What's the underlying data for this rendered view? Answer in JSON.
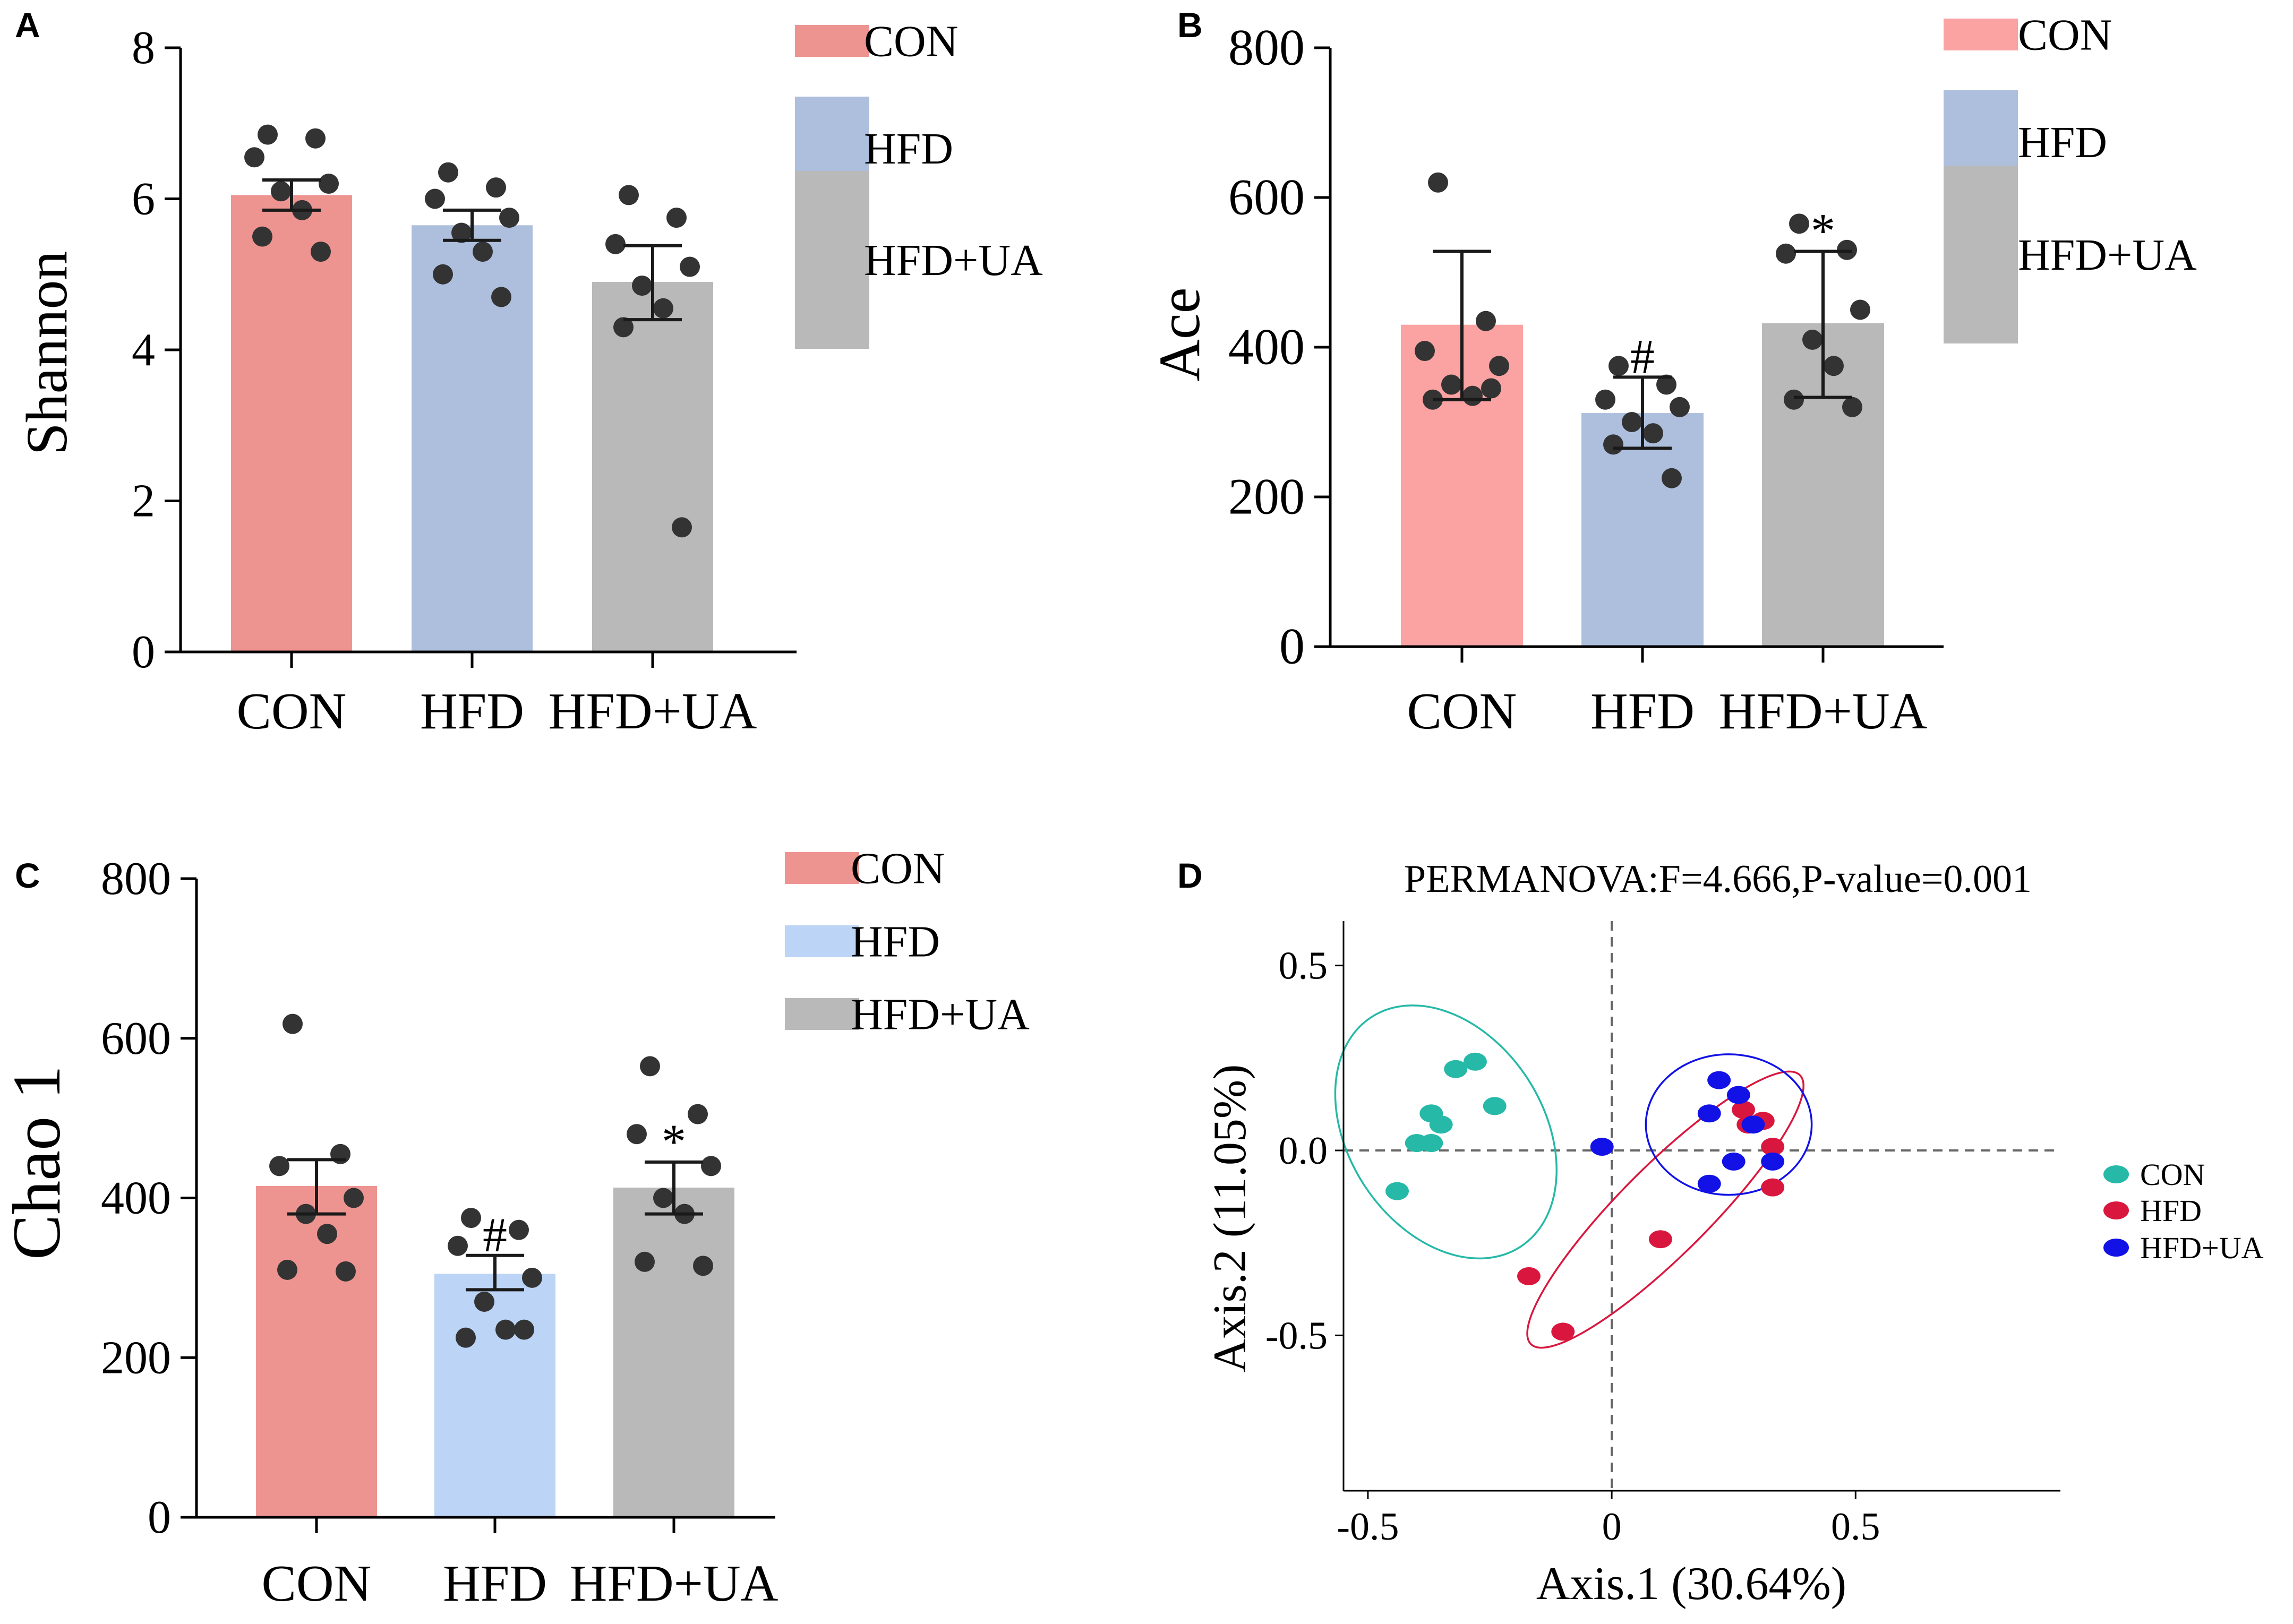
{
  "chart_data": [
    {
      "panel": "A",
      "type": "bar",
      "ylabel": "Shannon",
      "categories": [
        "CON",
        "HFD",
        "HFD+UA"
      ],
      "ylim": [
        0,
        8
      ],
      "yticks": [
        "0",
        "2",
        "4",
        "6",
        "8"
      ],
      "means": [
        6.05,
        5.65,
        4.9
      ],
      "error_low": [
        5.85,
        5.45,
        4.4
      ],
      "error_high": [
        6.25,
        5.85,
        5.38
      ],
      "points": [
        [
          6.85,
          6.8,
          6.55,
          6.2,
          6.1,
          5.85,
          5.5,
          5.3
        ],
        [
          6.35,
          6.15,
          6.0,
          5.75,
          5.55,
          5.3,
          5.0,
          4.7
        ],
        [
          6.05,
          5.75,
          5.4,
          5.1,
          4.85,
          4.55,
          4.3,
          1.65
        ]
      ],
      "annotations": [
        "",
        "",
        ""
      ],
      "bar_colors": [
        "#ee9490",
        "#aebfdd",
        "#b9b9b9"
      ],
      "legend": [
        "CON",
        "HFD",
        "HFD+UA"
      ]
    },
    {
      "panel": "B",
      "type": "bar",
      "ylabel": "Ace",
      "categories": [
        "CON",
        "HFD",
        "HFD+UA"
      ],
      "ylim": [
        0,
        800
      ],
      "yticks": [
        "0",
        "200",
        "400",
        "600",
        "800"
      ],
      "means": [
        430,
        312,
        432
      ],
      "error_low": [
        330,
        265,
        333
      ],
      "error_high": [
        528,
        360,
        528
      ],
      "points": [
        [
          620,
          435,
          395,
          375,
          350,
          335,
          330,
          345
        ],
        [
          375,
          350,
          330,
          320,
          300,
          285,
          270,
          225
        ],
        [
          565,
          530,
          525,
          450,
          410,
          375,
          330,
          320
        ]
      ],
      "annotations": [
        "",
        "#",
        "*"
      ],
      "bar_colors": [
        "#fba2a2",
        "#aebfdd",
        "#b9b9b9"
      ],
      "legend": [
        "CON",
        "HFD",
        "HFD+UA"
      ]
    },
    {
      "panel": "C",
      "type": "bar",
      "ylabel": "Chao 1",
      "categories": [
        "CON",
        "HFD",
        "HFD+UA"
      ],
      "ylim": [
        0,
        800
      ],
      "yticks": [
        "0",
        "200",
        "400",
        "600",
        "800"
      ],
      "means": [
        415,
        305,
        413
      ],
      "error_low": [
        380,
        285,
        380
      ],
      "error_high": [
        448,
        328,
        445
      ],
      "points": [
        [
          618,
          455,
          440,
          400,
          380,
          355,
          310,
          308
        ],
        [
          375,
          360,
          340,
          300,
          270,
          235,
          225,
          235
        ],
        [
          565,
          505,
          480,
          440,
          400,
          380,
          320,
          315
        ]
      ],
      "annotations": [
        "",
        "#",
        "*"
      ],
      "bar_colors": [
        "#ee9490",
        "#bcd4f5",
        "#b9b9b9"
      ],
      "legend": [
        "CON",
        "HFD",
        "HFD+UA"
      ]
    },
    {
      "panel": "D",
      "type": "scatter",
      "title": "PERMANOVA:F=4.666,P-value=0.001",
      "xlabel": "Axis.1 (30.64%)",
      "ylabel": "Axis.2 (11.05%)",
      "xlim": [
        -0.55,
        0.92
      ],
      "ylim": [
        -0.92,
        0.62
      ],
      "xticks": [
        "-0.5",
        "0",
        "0.5"
      ],
      "yticks": [
        "0.5",
        "0.0",
        "-0.5"
      ],
      "legend": [
        "CON",
        "HFD",
        "HFD+UA"
      ],
      "colors": {
        "CON": "#26b9a7",
        "HFD": "#d9173e",
        "HFD+UA": "#1212e6"
      },
      "series": [
        {
          "name": "CON",
          "x": [
            -0.28,
            -0.32,
            -0.24,
            -0.37,
            -0.35,
            -0.37,
            -0.4,
            -0.44
          ],
          "y": [
            0.24,
            0.22,
            0.12,
            0.1,
            0.07,
            0.02,
            0.02,
            -0.11
          ]
        },
        {
          "name": "HFD",
          "x": [
            0.27,
            0.31,
            0.28,
            0.33,
            0.33,
            0.1,
            -0.17,
            -0.1
          ],
          "y": [
            0.11,
            0.08,
            0.07,
            0.01,
            -0.1,
            -0.24,
            -0.34,
            -0.49
          ]
        },
        {
          "name": "HFD+UA",
          "x": [
            0.22,
            0.26,
            0.2,
            0.29,
            0.33,
            -0.02,
            0.25,
            0.2
          ],
          "y": [
            0.19,
            0.15,
            0.1,
            0.07,
            -0.03,
            0.01,
            -0.03,
            -0.09
          ]
        }
      ],
      "ellipses": [
        {
          "name": "CON",
          "cx": -0.34,
          "cy": 0.05,
          "rx": 0.2,
          "ry": 0.37,
          "angle_deg": -33
        },
        {
          "name": "HFD",
          "cx": 0.11,
          "cy": -0.16,
          "rx": 0.39,
          "ry": 0.12,
          "angle_deg": -45
        },
        {
          "name": "HFD+UA",
          "cx": 0.24,
          "cy": 0.07,
          "rx": 0.17,
          "ry": 0.19,
          "angle_deg": 0
        }
      ]
    }
  ],
  "panel_labels": [
    "A",
    "B",
    "C",
    "D"
  ]
}
